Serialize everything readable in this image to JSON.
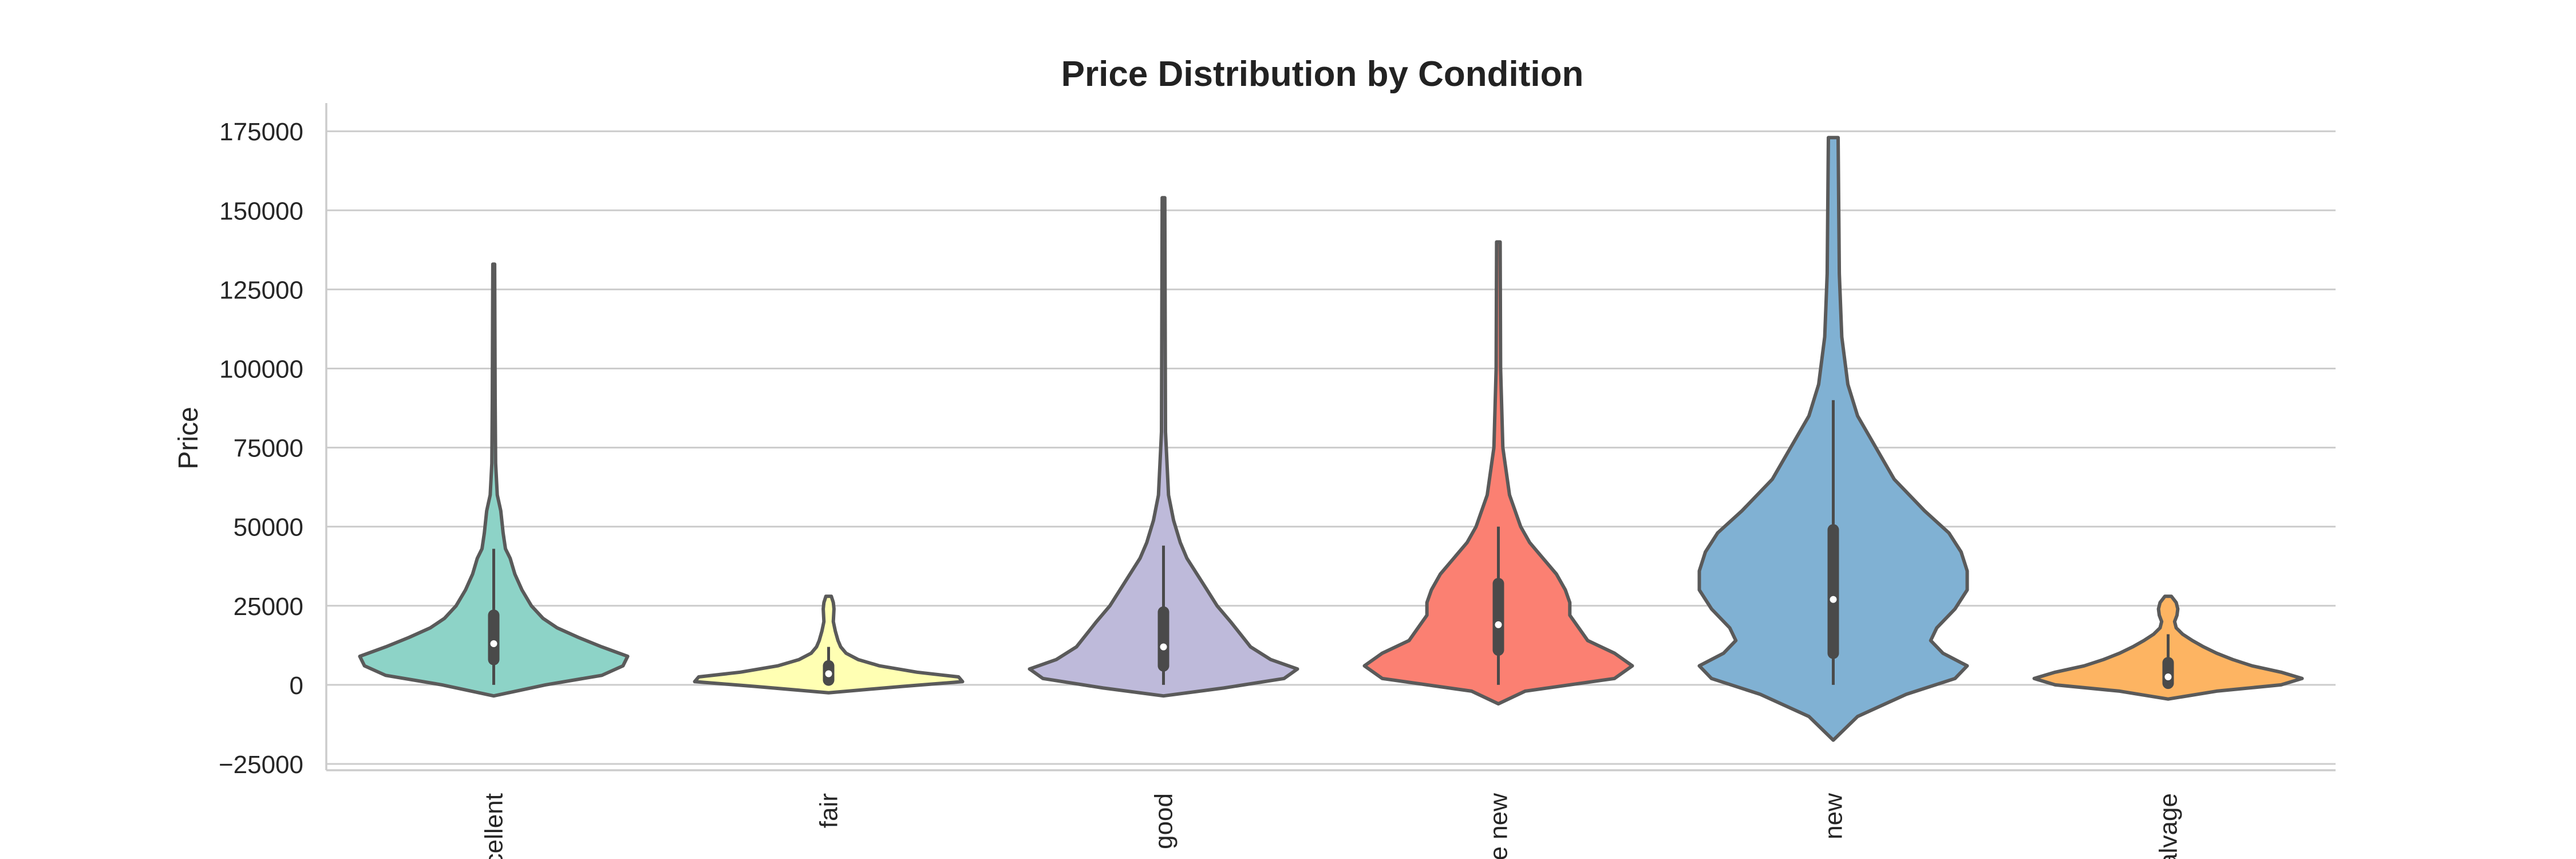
{
  "chart_data": {
    "type": "violin",
    "title": "Price Distribution by Condition",
    "xlabel": "",
    "ylabel": "Price",
    "ylim": [
      -27000,
      183000
    ],
    "y_ticks": [
      -25000,
      0,
      25000,
      50000,
      75000,
      100000,
      125000,
      150000,
      175000
    ],
    "y_tick_labels": [
      "−25000",
      "0",
      "25000",
      "50000",
      "75000",
      "100000",
      "125000",
      "150000",
      "175000"
    ],
    "x_tick_labels": [
      "cellent",
      "fair",
      "good",
      "ke new",
      "new",
      "alvage"
    ],
    "grid": "horizontal",
    "categories": [
      {
        "name": "excellent",
        "color": "#8dd3c7",
        "median": 13000,
        "q1": 8000,
        "q3": 22000,
        "whisker_low": 0,
        "whisker_high": 43000,
        "profile": [
          [
            -3500,
            0
          ],
          [
            0,
            0.22
          ],
          [
            3000,
            0.46
          ],
          [
            6000,
            0.55
          ],
          [
            9000,
            0.57
          ],
          [
            12000,
            0.46
          ],
          [
            15000,
            0.36
          ],
          [
            18000,
            0.27
          ],
          [
            21000,
            0.21
          ],
          [
            25000,
            0.16
          ],
          [
            30000,
            0.12
          ],
          [
            35000,
            0.09
          ],
          [
            40000,
            0.07
          ],
          [
            43000,
            0.05
          ],
          [
            48000,
            0.04
          ],
          [
            55000,
            0.03
          ],
          [
            60000,
            0.015
          ],
          [
            70000,
            0.008
          ],
          [
            90000,
            0.006
          ],
          [
            133000,
            0.004
          ]
        ]
      },
      {
        "name": "fair",
        "color": "#ffffb3",
        "median": 3500,
        "q1": 1500,
        "q3": 6000,
        "whisker_low": 0,
        "whisker_high": 12000,
        "profile": [
          [
            -2500,
            0
          ],
          [
            -500,
            0.55
          ],
          [
            1000,
            1.0
          ],
          [
            2500,
            0.97
          ],
          [
            4000,
            0.66
          ],
          [
            6000,
            0.38
          ],
          [
            8000,
            0.22
          ],
          [
            10000,
            0.13
          ],
          [
            12000,
            0.09
          ],
          [
            14000,
            0.07
          ],
          [
            17000,
            0.05
          ],
          [
            20000,
            0.035
          ],
          [
            24000,
            0.04
          ],
          [
            26000,
            0.035
          ],
          [
            28000,
            0.02
          ]
        ]
      },
      {
        "name": "good",
        "color": "#bebada",
        "median": 12000,
        "q1": 6000,
        "q3": 23000,
        "whisker_low": 0,
        "whisker_high": 44000,
        "profile": [
          [
            -3500,
            0
          ],
          [
            -1000,
            0.18
          ],
          [
            2000,
            0.36
          ],
          [
            5000,
            0.4
          ],
          [
            8000,
            0.32
          ],
          [
            12000,
            0.26
          ],
          [
            16000,
            0.23
          ],
          [
            20000,
            0.2
          ],
          [
            25000,
            0.16
          ],
          [
            30000,
            0.13
          ],
          [
            35000,
            0.1
          ],
          [
            40000,
            0.07
          ],
          [
            45000,
            0.05
          ],
          [
            52000,
            0.03
          ],
          [
            60000,
            0.015
          ],
          [
            80000,
            0.006
          ],
          [
            154000,
            0.004
          ]
        ]
      },
      {
        "name": "like new",
        "color": "#fb8072",
        "median": 19000,
        "q1": 11000,
        "q3": 32000,
        "whisker_low": 0,
        "whisker_high": 50000,
        "profile": [
          [
            -6000,
            0
          ],
          [
            -2000,
            0.06
          ],
          [
            2000,
            0.26
          ],
          [
            6000,
            0.3
          ],
          [
            10000,
            0.26
          ],
          [
            14000,
            0.2
          ],
          [
            18000,
            0.18
          ],
          [
            22000,
            0.16
          ],
          [
            26000,
            0.16
          ],
          [
            30000,
            0.15
          ],
          [
            35000,
            0.13
          ],
          [
            40000,
            0.1
          ],
          [
            45000,
            0.07
          ],
          [
            50000,
            0.05
          ],
          [
            60000,
            0.025
          ],
          [
            75000,
            0.01
          ],
          [
            100000,
            0.005
          ],
          [
            140000,
            0.004
          ]
        ]
      },
      {
        "name": "new",
        "color": "#80b1d3",
        "median": 27000,
        "q1": 10000,
        "q3": 49000,
        "whisker_low": 0,
        "whisker_high": 90000,
        "profile": [
          [
            -17500,
            0
          ],
          [
            -10000,
            0.02
          ],
          [
            -3000,
            0.06
          ],
          [
            2000,
            0.1
          ],
          [
            6000,
            0.11
          ],
          [
            10000,
            0.09
          ],
          [
            14000,
            0.08
          ],
          [
            18000,
            0.085
          ],
          [
            24000,
            0.1
          ],
          [
            30000,
            0.11
          ],
          [
            36000,
            0.11
          ],
          [
            42000,
            0.105
          ],
          [
            48000,
            0.095
          ],
          [
            55000,
            0.075
          ],
          [
            65000,
            0.05
          ],
          [
            75000,
            0.035
          ],
          [
            85000,
            0.02
          ],
          [
            95000,
            0.012
          ],
          [
            110000,
            0.007
          ],
          [
            130000,
            0.005
          ],
          [
            173000,
            0.004
          ]
        ]
      },
      {
        "name": "salvage",
        "color": "#fdb462",
        "median": 2500,
        "q1": 500,
        "q3": 7000,
        "whisker_low": 0,
        "whisker_high": 16000,
        "profile": [
          [
            -4500,
            0
          ],
          [
            -2000,
            0.3
          ],
          [
            0,
            0.7
          ],
          [
            2000,
            0.83
          ],
          [
            4000,
            0.7
          ],
          [
            6000,
            0.52
          ],
          [
            8000,
            0.4
          ],
          [
            10000,
            0.3
          ],
          [
            12000,
            0.22
          ],
          [
            14000,
            0.15
          ],
          [
            16000,
            0.09
          ],
          [
            18000,
            0.05
          ],
          [
            20000,
            0.04
          ],
          [
            22000,
            0.055
          ],
          [
            24000,
            0.06
          ],
          [
            26000,
            0.05
          ],
          [
            28000,
            0.02
          ]
        ]
      }
    ]
  }
}
